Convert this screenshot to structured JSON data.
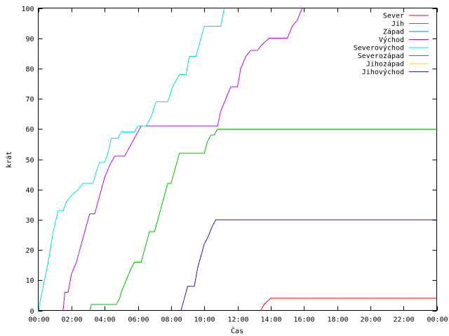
{
  "chart_data": {
    "type": "line",
    "title": "",
    "xlabel": "Čas",
    "ylabel": "krát",
    "xlim": [
      0,
      24
    ],
    "ylim": [
      0,
      100
    ],
    "x_ticks": [
      {
        "value": 0,
        "label": "00:00"
      },
      {
        "value": 2,
        "label": "02:00"
      },
      {
        "value": 4,
        "label": "04:00"
      },
      {
        "value": 6,
        "label": "06:00"
      },
      {
        "value": 8,
        "label": "08:00"
      },
      {
        "value": 10,
        "label": "10:00"
      },
      {
        "value": 12,
        "label": "12:00"
      },
      {
        "value": 14,
        "label": "14:00"
      },
      {
        "value": 16,
        "label": "16:00"
      },
      {
        "value": 18,
        "label": "18:00"
      },
      {
        "value": 20,
        "label": "20:00"
      },
      {
        "value": 22,
        "label": "22:00"
      },
      {
        "value": 24,
        "label": "00:00"
      }
    ],
    "y_ticks": [
      0,
      10,
      20,
      30,
      40,
      50,
      60,
      70,
      80,
      90,
      100
    ],
    "grid": false,
    "legend_position": "top-right",
    "series": [
      {
        "name": "Sever",
        "color": "#ff0000",
        "points": [
          [
            13.4,
            0
          ],
          [
            13.5,
            1
          ],
          [
            13.6,
            2
          ],
          [
            13.8,
            3
          ],
          [
            14.0,
            4
          ],
          [
            24,
            4
          ]
        ]
      },
      {
        "name": "Jih",
        "color": "#00c000",
        "points": [
          [
            3.1,
            0
          ],
          [
            3.2,
            2
          ],
          [
            4.7,
            2
          ],
          [
            4.9,
            4
          ],
          [
            5.0,
            6
          ],
          [
            5.3,
            10
          ],
          [
            5.6,
            14
          ],
          [
            5.8,
            16
          ],
          [
            6.2,
            16
          ],
          [
            6.5,
            22
          ],
          [
            6.7,
            26
          ],
          [
            7.0,
            26
          ],
          [
            7.3,
            32
          ],
          [
            7.6,
            38
          ],
          [
            7.8,
            42
          ],
          [
            8.0,
            42
          ],
          [
            8.2,
            46
          ],
          [
            8.5,
            52
          ],
          [
            10.0,
            52
          ],
          [
            10.2,
            56
          ],
          [
            10.4,
            58
          ],
          [
            10.6,
            58
          ],
          [
            10.8,
            60
          ],
          [
            24,
            60
          ]
        ]
      },
      {
        "name": "Západ",
        "color": "#0080ff",
        "points": []
      },
      {
        "name": "Východ",
        "color": "#c000ff",
        "points": [
          [
            1.5,
            0
          ],
          [
            1.6,
            6
          ],
          [
            1.8,
            6
          ],
          [
            2.0,
            12
          ],
          [
            2.3,
            16
          ],
          [
            2.6,
            22
          ],
          [
            2.9,
            28
          ],
          [
            3.1,
            32
          ],
          [
            3.4,
            32
          ],
          [
            3.7,
            38
          ],
          [
            4.0,
            44
          ],
          [
            4.3,
            48
          ],
          [
            4.6,
            51
          ],
          [
            5.2,
            51
          ],
          [
            5.6,
            55
          ],
          [
            6.0,
            59
          ],
          [
            6.2,
            61
          ],
          [
            10.8,
            61
          ],
          [
            11.0,
            66
          ],
          [
            11.3,
            70
          ],
          [
            11.6,
            74
          ],
          [
            12.0,
            74
          ],
          [
            12.2,
            80
          ],
          [
            12.5,
            84
          ],
          [
            12.8,
            86
          ],
          [
            13.2,
            86
          ],
          [
            13.5,
            88
          ],
          [
            13.9,
            90
          ],
          [
            15.0,
            90
          ],
          [
            15.3,
            94
          ],
          [
            15.6,
            96
          ],
          [
            15.9,
            100
          ]
        ]
      },
      {
        "name": "Severovýchod",
        "color": "#00e0e0",
        "points": [
          [
            0,
            0
          ],
          [
            0.3,
            8
          ],
          [
            0.6,
            16
          ],
          [
            0.9,
            26
          ],
          [
            1.2,
            33
          ],
          [
            1.5,
            33
          ],
          [
            1.7,
            36
          ],
          [
            2.0,
            38
          ],
          [
            2.4,
            40
          ],
          [
            2.7,
            42
          ],
          [
            3.3,
            42
          ],
          [
            3.5,
            46
          ],
          [
            3.7,
            49
          ],
          [
            4.0,
            49
          ],
          [
            4.2,
            52
          ],
          [
            4.4,
            57
          ],
          [
            4.8,
            57
          ],
          [
            5.0,
            59
          ],
          [
            5.8,
            59
          ],
          [
            6.0,
            61
          ],
          [
            6.5,
            61
          ],
          [
            6.8,
            64
          ],
          [
            7.1,
            69
          ],
          [
            7.8,
            69
          ],
          [
            8.1,
            74
          ],
          [
            8.5,
            78
          ],
          [
            8.9,
            78
          ],
          [
            9.1,
            84
          ],
          [
            9.5,
            84
          ],
          [
            9.7,
            88
          ],
          [
            9.9,
            92
          ],
          [
            10.0,
            94
          ],
          [
            11.0,
            94
          ],
          [
            11.2,
            100
          ]
        ]
      },
      {
        "name": "Severozápad",
        "color": "#c05000",
        "points": []
      },
      {
        "name": "Jihozápad",
        "color": "#ffd700",
        "points": []
      },
      {
        "name": "Jihovýchod",
        "color": "#2020a0",
        "points": [
          [
            8.6,
            0
          ],
          [
            8.8,
            4
          ],
          [
            9.0,
            8
          ],
          [
            9.4,
            8
          ],
          [
            9.6,
            14
          ],
          [
            9.8,
            18
          ],
          [
            10.0,
            22
          ],
          [
            10.2,
            24
          ],
          [
            10.5,
            28
          ],
          [
            10.7,
            30
          ],
          [
            24,
            30
          ]
        ]
      }
    ]
  }
}
